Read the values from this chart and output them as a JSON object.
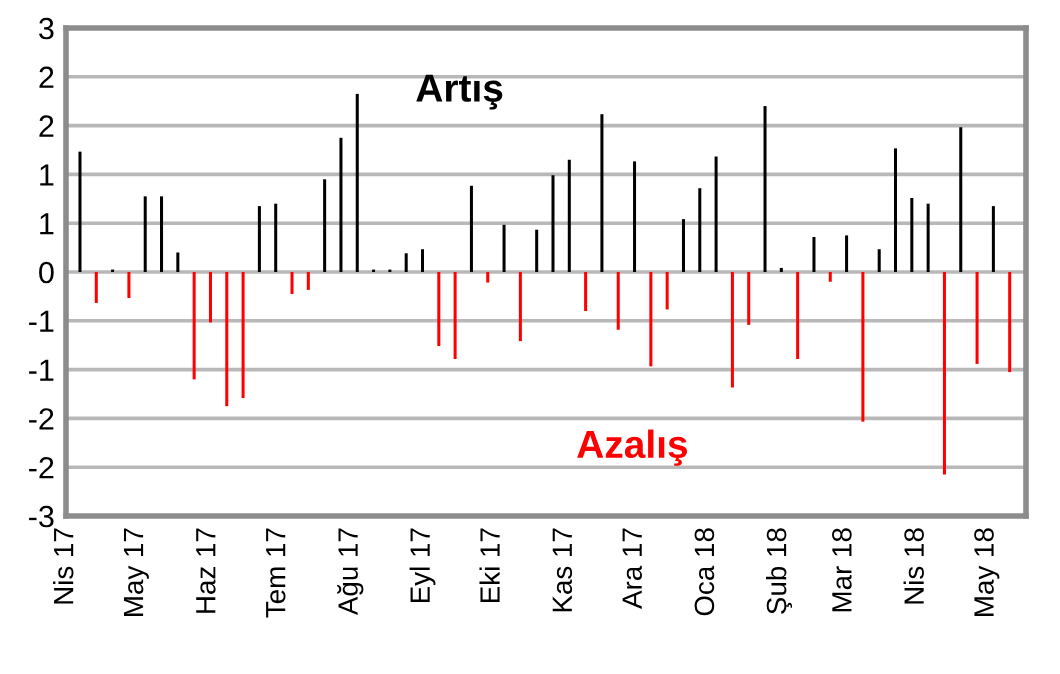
{
  "chart_data": {
    "type": "bar",
    "x": [
      "2017-04-07",
      "2017-04-14",
      "2017-04-21",
      "2017-04-28",
      "2017-05-05",
      "2017-05-12",
      "2017-05-19",
      "2017-05-26",
      "2017-06-02",
      "2017-06-09",
      "2017-06-16",
      "2017-06-23",
      "2017-06-30",
      "2017-07-07",
      "2017-07-14",
      "2017-07-21",
      "2017-07-28",
      "2017-08-04",
      "2017-08-11",
      "2017-08-18",
      "2017-08-25",
      "2017-09-01",
      "2017-09-08",
      "2017-09-15",
      "2017-09-22",
      "2017-09-29",
      "2017-10-06",
      "2017-10-13",
      "2017-10-20",
      "2017-10-27",
      "2017-11-03",
      "2017-11-10",
      "2017-11-17",
      "2017-11-24",
      "2017-12-01",
      "2017-12-08",
      "2017-12-15",
      "2017-12-22",
      "2017-12-29",
      "2018-01-05",
      "2018-01-12",
      "2018-01-19",
      "2018-01-26",
      "2018-02-02",
      "2018-02-09",
      "2018-02-16",
      "2018-02-23",
      "2018-03-02",
      "2018-03-09",
      "2018-03-16",
      "2018-03-23",
      "2018-03-30",
      "2018-04-06",
      "2018-04-13",
      "2018-04-20",
      "2018-04-27",
      "2018-05-04",
      "2018-05-11"
    ],
    "values": [
      1.48,
      -0.38,
      0.03,
      -0.32,
      0.93,
      0.93,
      0.24,
      -1.32,
      -0.62,
      -1.65,
      -1.55,
      0.81,
      0.84,
      -0.27,
      -0.22,
      1.14,
      1.65,
      2.19,
      0.03,
      0.03,
      0.23,
      0.28,
      -0.91,
      -1.07,
      1.06,
      -0.13,
      0.58,
      -0.85,
      0.52,
      1.19,
      1.38,
      -0.48,
      1.94,
      -0.71,
      1.36,
      -1.16,
      -0.46,
      0.65,
      1.03,
      1.42,
      -1.42,
      -0.65,
      2.04,
      0.05,
      -1.07,
      0.43,
      -0.12,
      0.45,
      -1.84,
      0.28,
      1.52,
      0.91,
      0.84,
      -2.49,
      1.78,
      -1.13,
      0.81,
      -1.23
    ],
    "colors": [
      "#000000",
      "#ff0000",
      "#000000",
      "#ff0000",
      "#000000",
      "#000000",
      "#000000",
      "#ff0000",
      "#ff0000",
      "#ff0000",
      "#ff0000",
      "#000000",
      "#000000",
      "#ff0000",
      "#ff0000",
      "#000000",
      "#000000",
      "#000000",
      "#000000",
      "#000000",
      "#000000",
      "#000000",
      "#ff0000",
      "#ff0000",
      "#000000",
      "#ff0000",
      "#000000",
      "#ff0000",
      "#000000",
      "#000000",
      "#000000",
      "#ff0000",
      "#000000",
      "#ff0000",
      "#000000",
      "#ff0000",
      "#ff0000",
      "#000000",
      "#000000",
      "#000000",
      "#ff0000",
      "#ff0000",
      "#000000",
      "#000000",
      "#ff0000",
      "#000000",
      "#ff0000",
      "#000000",
      "#ff0000",
      "#000000",
      "#000000",
      "#000000",
      "#000000",
      "#ff0000",
      "#000000",
      "#ff0000",
      "#000000",
      "#ff0000"
    ],
    "xlim": [
      "2017-04-01",
      "2018-05-18"
    ],
    "xticks": [
      {
        "value": "2017-04-01",
        "label": "Nis 17"
      },
      {
        "value": "2017-05-01",
        "label": "May 17"
      },
      {
        "value": "2017-06-01",
        "label": "Haz 17"
      },
      {
        "value": "2017-07-01",
        "label": "Tem 17"
      },
      {
        "value": "2017-08-01",
        "label": "Ağu 17"
      },
      {
        "value": "2017-09-01",
        "label": "Eyl 17"
      },
      {
        "value": "2017-10-01",
        "label": "Eki 17"
      },
      {
        "value": "2017-11-01",
        "label": "Kas 17"
      },
      {
        "value": "2017-12-01",
        "label": "Ara 17"
      },
      {
        "value": "2018-01-01",
        "label": "Oca 18"
      },
      {
        "value": "2018-02-01",
        "label": "Şub 18"
      },
      {
        "value": "2018-03-01",
        "label": "Mar 18"
      },
      {
        "value": "2018-04-01",
        "label": "Nis 18"
      },
      {
        "value": "2018-05-01",
        "label": "May 18"
      }
    ],
    "ylim": [
      -3,
      3
    ],
    "yticks": [
      -3,
      {
        "value": -2.4,
        "label": "-2"
      },
      {
        "value": -1.8,
        "label": "-2"
      },
      {
        "value": -1.2,
        "label": "-1"
      },
      {
        "value": -0.6,
        "label": "-1"
      },
      0,
      {
        "value": 0.6,
        "label": "1"
      },
      {
        "value": 1.2,
        "label": "1"
      },
      {
        "value": 1.8,
        "label": "2"
      },
      {
        "value": 2.4,
        "label": "2"
      },
      3
    ],
    "grid": "y",
    "annotations": [
      "Artış",
      "Azalış"
    ]
  }
}
